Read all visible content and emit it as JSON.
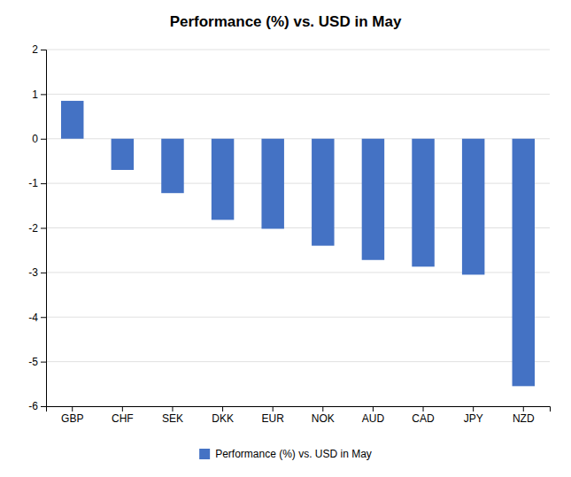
{
  "chart_data": {
    "type": "bar",
    "title": "Performance (%) vs. USD in May",
    "categories": [
      "GBP",
      "CHF",
      "SEK",
      "DKK",
      "EUR",
      "NOK",
      "AUD",
      "CAD",
      "JPY",
      "NZD"
    ],
    "series": [
      {
        "name": "Performance (%) vs. USD in May",
        "color": "#4472C4",
        "values": [
          0.85,
          -0.7,
          -1.22,
          -1.82,
          -2.02,
          -2.4,
          -2.72,
          -2.87,
          -3.05,
          -5.55
        ]
      }
    ],
    "ylim": [
      -6,
      2
    ],
    "yticks": [
      -6,
      -5,
      -4,
      -3,
      -2,
      -1,
      0,
      1,
      2
    ],
    "grid": true,
    "legend": "bottom"
  }
}
